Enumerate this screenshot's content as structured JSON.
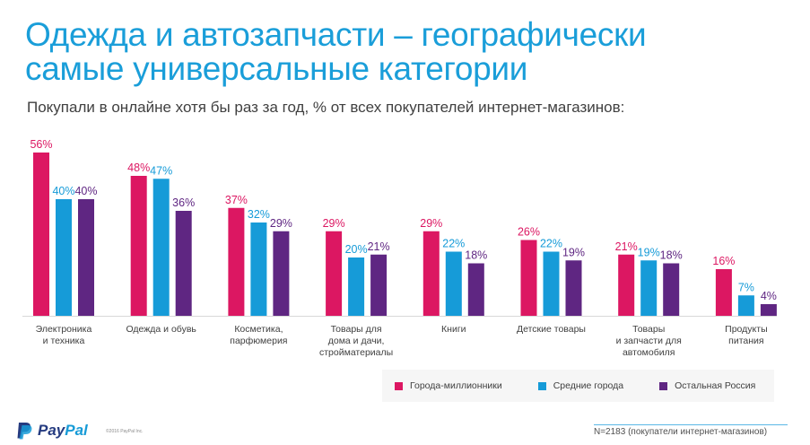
{
  "title_line1": "Одежда и автозапчасти – географически",
  "title_line2": "самые универсальные категории",
  "subtitle": "Покупали в онлайне хотя бы раз за год, % от всех покупателей интернет-магазинов:",
  "footnote": "N=2183 (покупатели интернет-магазинов)",
  "copyright": "©2016 PayPal Inc.",
  "logo": {
    "pay": "Pay",
    "pal": "Pal"
  },
  "chart_data": {
    "type": "bar",
    "title": "Покупали в онлайне хотя бы раз за год, % от всех покупателей интернет-магазинов",
    "xlabel": "",
    "ylabel": "",
    "ylim": [
      0,
      60
    ],
    "grid": false,
    "legend_position": "bottom-right",
    "value_suffix": "%",
    "categories": [
      [
        "Электроника",
        "и техника"
      ],
      [
        "Одежда и обувь"
      ],
      [
        "Косметика,",
        "парфюмерия"
      ],
      [
        "Товары для",
        "дома и дачи,",
        "стройматериалы"
      ],
      [
        "Книги"
      ],
      [
        "Детские товары"
      ],
      [
        "Товары",
        "и запчасти для",
        "автомобиля"
      ],
      [
        "Продукты",
        "питания"
      ]
    ],
    "series": [
      {
        "name": "Города-миллионники",
        "color": "#DC1762",
        "values": [
          56,
          48,
          37,
          29,
          29,
          26,
          21,
          16
        ]
      },
      {
        "name": "Средние города",
        "color": "#169BD8",
        "values": [
          40,
          47,
          32,
          20,
          22,
          22,
          19,
          7
        ]
      },
      {
        "name": "Остальная Россия",
        "color": "#5F2682",
        "values": [
          40,
          36,
          29,
          21,
          18,
          19,
          18,
          4
        ]
      }
    ]
  }
}
